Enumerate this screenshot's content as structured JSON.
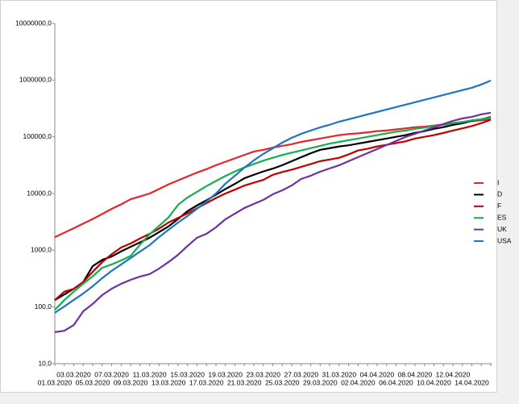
{
  "chart_data": {
    "type": "line",
    "categories": [
      "01.03.2020",
      null,
      "03.03.2020",
      null,
      "05.03.2020",
      null,
      "07.03.2020",
      null,
      "09.03.2020",
      null,
      "11.03.2020",
      null,
      "13.03.2020",
      null,
      "15.03.2020",
      null,
      "17.03.2020",
      null,
      "19.03.2020",
      null,
      "21.03.2020",
      null,
      "23.03.2020",
      null,
      "25.03.2020",
      null,
      "27.03.2020",
      null,
      "29.03.2020",
      null,
      "31.03.2020",
      null,
      "02.04.2020",
      null,
      "04.04.2020",
      null,
      "06.04.2020",
      null,
      "08.04.2020",
      null,
      "10.04.2020",
      null,
      "12.04.2020",
      null,
      "14.04.2020",
      null,
      null
    ],
    "yscale": "log",
    "ylim": [
      10,
      10000000
    ],
    "yticks": [
      {
        "value": 10,
        "label": "10,0"
      },
      {
        "value": 100,
        "label": "100,0"
      },
      {
        "value": 1000,
        "label": "1000,0"
      },
      {
        "value": 10000,
        "label": "10000,0"
      },
      {
        "value": 100000,
        "label": "100000,0"
      },
      {
        "value": 1000000,
        "label": "1000000,0"
      },
      {
        "value": 10000000,
        "label": "10000000,0"
      }
    ],
    "grid": false,
    "legend": "right",
    "series": [
      {
        "name": "I",
        "color": "#e8242a",
        "values": [
          1700,
          2040,
          2450,
          2950,
          3550,
          4360,
          5370,
          6460,
          7940,
          8910,
          10000,
          12000,
          14500,
          17000,
          20000,
          23400,
          26900,
          31600,
          36300,
          41700,
          47900,
          55000,
          58900,
          64600,
          69200,
          74100,
          81300,
          87100,
          93300,
          100000,
          107000,
          112000,
          115000,
          120000,
          126000,
          129000,
          135000,
          141000,
          148000,
          151000,
          158000,
          166000,
          174000,
          182000,
          191000,
          195000,
          204000
        ]
      },
      {
        "name": "D",
        "color": "#000000",
        "values": [
          132,
          166,
          209,
          275,
          525,
          676,
          776,
          955,
          1150,
          1380,
          1660,
          2090,
          2630,
          3550,
          4900,
          6170,
          7590,
          9550,
          12000,
          14800,
          18600,
          21400,
          24500,
          27500,
          31600,
          37200,
          43700,
          51300,
          58900,
          63100,
          67600,
          70800,
          75900,
          81300,
          87100,
          93300,
          100000,
          107000,
          117000,
          126000,
          138000,
          148000,
          162000,
          174000,
          191000,
          204000,
          224000
        ]
      },
      {
        "name": "F",
        "color": "#c00000",
        "values": [
          132,
          186,
          209,
          275,
          417,
          617,
          851,
          1120,
          1320,
          1620,
          1950,
          2400,
          3090,
          3720,
          4470,
          5500,
          6760,
          8320,
          10000,
          11700,
          13800,
          15500,
          17400,
          21400,
          24000,
          26300,
          29500,
          33100,
          37200,
          39800,
          42700,
          49000,
          57500,
          61700,
          67600,
          72400,
          77600,
          83200,
          93300,
          100000,
          107000,
          117000,
          129000,
          141000,
          155000,
          174000,
          200000
        ]
      },
      {
        "name": "ES",
        "color": "#12b04e",
        "values": [
          89,
          132,
          186,
          257,
          347,
          490,
          562,
          661,
          794,
          1260,
          1910,
          2690,
          3800,
          6310,
          8510,
          10700,
          13500,
          16600,
          20400,
          24500,
          28800,
          33100,
          38000,
          42700,
          47900,
          52500,
          57500,
          63100,
          69200,
          75900,
          81300,
          87100,
          93300,
          100000,
          107000,
          115000,
          123000,
          129000,
          138000,
          145000,
          155000,
          162000,
          174000,
          182000,
          195000,
          204000,
          219000
        ]
      },
      {
        "name": "UK",
        "color": "#7030a0",
        "values": [
          36,
          38,
          48,
          84,
          113,
          162,
          210,
          256,
          301,
          344,
          379,
          476,
          620,
          832,
          1190,
          1660,
          1950,
          2540,
          3520,
          4420,
          5560,
          6550,
          7720,
          9710,
          11400,
          13900,
          18100,
          20600,
          24300,
          27700,
          31500,
          37200,
          43800,
          51600,
          60800,
          71600,
          84400,
          99400,
          113000,
          129000,
          147000,
          168000,
          191000,
          211000,
          225000,
          249000,
          266000
        ]
      },
      {
        "name": "USA",
        "color": "#1f74c4",
        "values": [
          79,
          102,
          133,
          173,
          232,
          322,
          433,
          562,
          730,
          949,
          1230,
          1710,
          2300,
          3080,
          4010,
          5380,
          7230,
          10000,
          14900,
          20600,
          28600,
          38500,
          49900,
          62800,
          79000,
          96200,
          113000,
          129000,
          147000,
          163000,
          185000,
          204000,
          225000,
          249000,
          274000,
          303000,
          334000,
          368000,
          406000,
          448000,
          494000,
          546000,
          602000,
          664000,
          733000,
          836000,
          984000
        ]
      }
    ]
  }
}
